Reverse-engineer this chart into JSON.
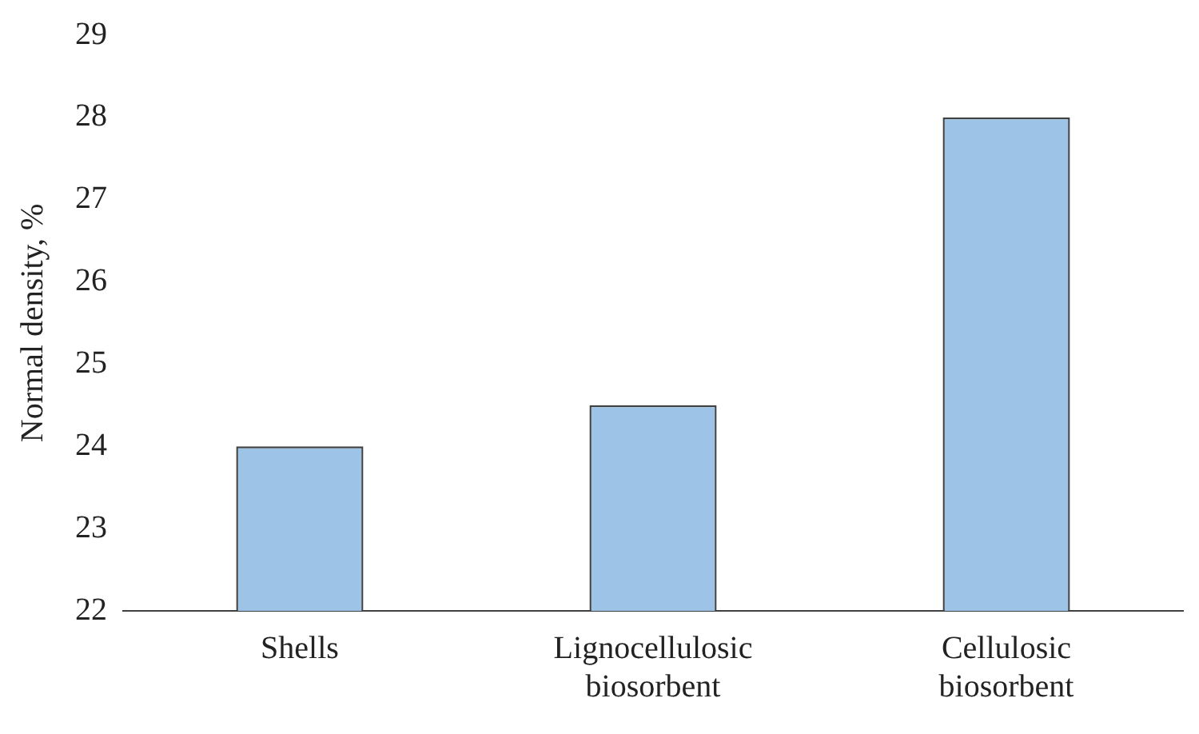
{
  "chart_data": {
    "type": "bar",
    "ylabel": "Normal density, %",
    "categories": [
      "Shells",
      "Lignocellulosic biosorbent",
      "Cellulosic biosorbent"
    ],
    "values": [
      24,
      24.5,
      28
    ],
    "color": "#9dc3e6",
    "ylim": [
      22,
      29
    ],
    "yticks": [
      22,
      23,
      24,
      25,
      26,
      27,
      28,
      29
    ],
    "grid": false,
    "legend": false
  }
}
